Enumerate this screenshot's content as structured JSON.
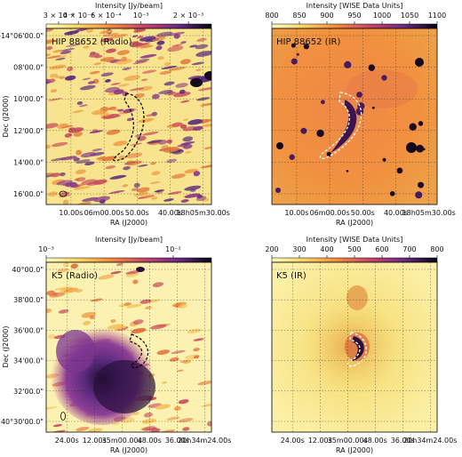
{
  "chart_data": [
    {
      "type": "heatmap",
      "title": "HIP 88652 (Radio)",
      "colorbar": {
        "label": "Intensity [Jy/beam]",
        "scale": "log",
        "range": [
          0.00025,
          0.0028
        ],
        "ticks": [
          0.0003,
          0.0004,
          0.0006,
          0.001,
          0.002
        ],
        "tick_labels": [
          "3 × 10⁻⁴",
          "4 × 10⁻⁴",
          "6 × 10⁻⁴",
          "10⁻³",
          "2 × 10⁻³"
        ],
        "colormap": "inferno_r"
      },
      "xlabel": "RA (J2000)",
      "ylabel": "Dec (J2000)",
      "x_ticks": [
        "10.00s",
        "06m00.00s",
        "50.00s",
        "40.00s",
        "18h05m30.00s"
      ],
      "y_ticks": [
        "-14°06'00.0\"",
        "08'00.0\"",
        "10'00.0\"",
        "12'00.0\"",
        "14'00.0\"",
        "16'00.0\""
      ],
      "contour_color": "#000000",
      "grid": true
    },
    {
      "type": "heatmap",
      "title": "HIP 88652 (IR)",
      "colorbar": {
        "label": "Intensity [WISE Data Units]",
        "scale": "linear",
        "range": [
          800,
          1100
        ],
        "ticks": [
          800,
          850,
          900,
          950,
          1000,
          1050,
          1100
        ],
        "tick_labels": [
          "800",
          "850",
          "900",
          "950",
          "1000",
          "1050",
          "1100"
        ],
        "colormap": "inferno_r"
      },
      "xlabel": "RA (J2000)",
      "ylabel": "",
      "x_ticks": [
        "10.00s",
        "06m00.00s",
        "50.00s",
        "40.00s",
        "18h05m30.00s"
      ],
      "y_ticks": [],
      "contour_color": "#ffffff",
      "grid": true
    },
    {
      "type": "heatmap",
      "title": "K5 (Radio)",
      "colorbar": {
        "label": "Intensity [Jy/beam]",
        "scale": "log",
        "range": [
          0.001,
          0.02
        ],
        "ticks": [
          0.001,
          0.01
        ],
        "tick_labels": [
          "10⁻³",
          "10⁻²"
        ],
        "colormap": "inferno_r"
      },
      "xlabel": "RA (J2000)",
      "ylabel": "Dec (J2000)",
      "x_ticks": [
        "24.00s",
        "12.00s",
        "35m00.00s",
        "48.00s",
        "36.00s",
        "20h34m24.00s"
      ],
      "y_ticks": [
        "40°00.0\"",
        "38'00.0\"",
        "36'00.0\"",
        "34'00.0\"",
        "32'00.0\"",
        "+40°30'00.0\""
      ],
      "contour_color": "#000000",
      "grid": true
    },
    {
      "type": "heatmap",
      "title": "K5 (IR)",
      "colorbar": {
        "label": "Intensity [WISE Data Units]",
        "scale": "linear",
        "range": [
          200,
          800
        ],
        "ticks": [
          200,
          300,
          400,
          500,
          600,
          700,
          800
        ],
        "tick_labels": [
          "200",
          "300",
          "400",
          "500",
          "600",
          "700",
          "800"
        ],
        "colormap": "inferno_r"
      },
      "xlabel": "RA (J2000)",
      "ylabel": "",
      "x_ticks": [
        "24.00s",
        "12.00s",
        "35m00.00s",
        "48.00s",
        "36.00s",
        "20h34m24.00s"
      ],
      "y_ticks": [],
      "contour_color": "#ffffff",
      "grid": true
    }
  ]
}
